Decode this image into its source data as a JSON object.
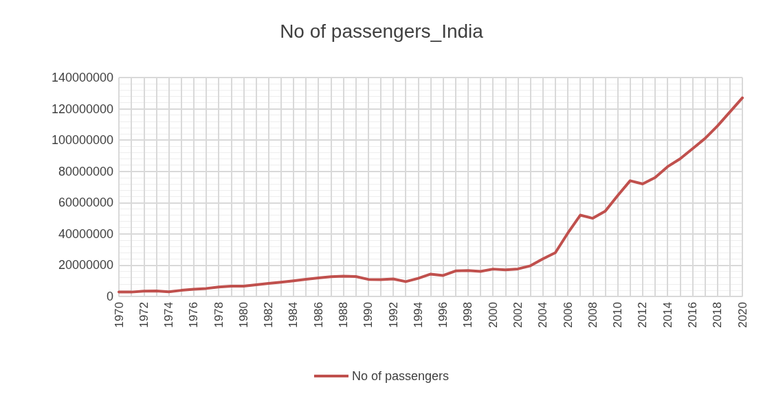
{
  "chart_data": {
    "type": "line",
    "title": "No of passengers_India",
    "categories": [
      "1970",
      null,
      "1972",
      null,
      "1974",
      null,
      "1976",
      null,
      "1978",
      null,
      "1980",
      null,
      "1982",
      null,
      "1984",
      null,
      "1986",
      null,
      "1988",
      null,
      "1990",
      null,
      "1992",
      null,
      "1994",
      null,
      "1996",
      null,
      "1998",
      null,
      "2000",
      null,
      "2002",
      null,
      "2004",
      null,
      "2006",
      null,
      "2008",
      null,
      "2010",
      null,
      "2012",
      null,
      "2014",
      null,
      "2016",
      null,
      "2018",
      null,
      "2020"
    ],
    "series": [
      {
        "name": "No of passengers",
        "color": "#c0504d",
        "values": [
          2900000,
          2800000,
          3400000,
          3500000,
          3000000,
          3900000,
          4600000,
          5100000,
          6000000,
          6600000,
          6600000,
          7500000,
          8300000,
          9100000,
          10000000,
          11000000,
          11800000,
          12600000,
          12900000,
          12700000,
          10900000,
          10800000,
          11200000,
          9500000,
          11600000,
          14300000,
          13400000,
          16300000,
          16600000,
          16000000,
          17500000,
          17000000,
          17600000,
          19600000,
          24000000,
          28000000,
          40500000,
          52000000,
          50000000,
          54500000,
          64500000,
          74000000,
          72000000,
          76000000,
          83000000,
          88000000,
          94500000,
          101000000,
          109000000,
          118000000,
          127000000
        ]
      }
    ],
    "ylim": [
      0,
      140000000
    ],
    "yticks": [
      0,
      20000000,
      40000000,
      60000000,
      80000000,
      100000000,
      120000000,
      140000000
    ],
    "grid": true,
    "legend": "bottom",
    "marker": "none",
    "line_style": "solid"
  }
}
